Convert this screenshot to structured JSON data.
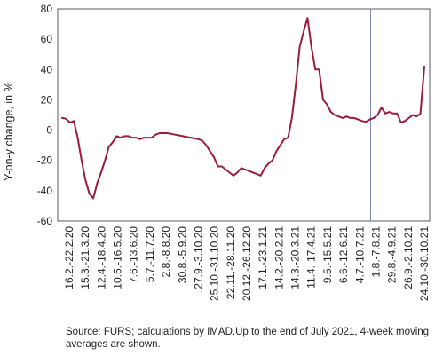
{
  "chart_data": {
    "type": "line",
    "ylabel": "Y-on-y change, in %",
    "ylim": [
      -60,
      80
    ],
    "yticks": [
      80,
      60,
      40,
      20,
      0,
      -20,
      -40,
      -60
    ],
    "grid": false,
    "x_tick_labels": [
      "16.2.-22.2.20",
      "15.3.-21.3.20",
      "12.4.-18.4.20",
      "10.5.-16.5.20",
      "7.6.-13.6.20",
      "5.7.-11.7.20",
      "2.8.-8.8.20",
      "30.8.-5.9.20",
      "27.9.-3.10.20",
      "25.10.-31.10.20",
      "22.11.-28.11.20",
      "20.12.-26.12.20",
      "17.1.-23.1.21",
      "14.2.-20.2.21",
      "14.3.-20.3.21",
      "11.4.-17.4.21",
      "9.5.-15.5.21",
      "6.6.-12.6.21",
      "4.7.-10.7.21",
      "1.8.-7.8.21",
      "29.8.-4.9.21",
      "26.9.-2.10.21",
      "24.10.-30.10.21"
    ],
    "vertical_line_at": "1.8.-7.8.21",
    "series": [
      {
        "color": "#9b1b3b",
        "values": [
          8,
          7.5,
          5,
          6,
          -5,
          -20,
          -33,
          -42,
          -45,
          -35,
          -28,
          -20,
          -11,
          -8,
          -4,
          -5,
          -4,
          -4,
          -5,
          -5,
          -6,
          -5,
          -5,
          -5,
          -3,
          -2,
          -2,
          -2,
          -2.5,
          -3,
          -3.5,
          -4,
          -4.5,
          -5,
          -5.5,
          -6,
          -7,
          -10,
          -14,
          -18,
          -24,
          -24,
          -26,
          -28,
          -30,
          -28,
          -25,
          -26,
          -27,
          -28,
          -29,
          -30,
          -25,
          -22,
          -20,
          -14,
          -10,
          -6,
          -5,
          8,
          30,
          55,
          65,
          74,
          55,
          40,
          40,
          20,
          17,
          12,
          10,
          9,
          8,
          9,
          8,
          8,
          7,
          6,
          5.5,
          7,
          8,
          10,
          15,
          11,
          12,
          11,
          11,
          5,
          6,
          8,
          10,
          9,
          11,
          42
        ]
      }
    ],
    "note": "Source: FURS; calculations by IMAD.Up to the end of July 2021, 4-week moving averages are shown."
  }
}
